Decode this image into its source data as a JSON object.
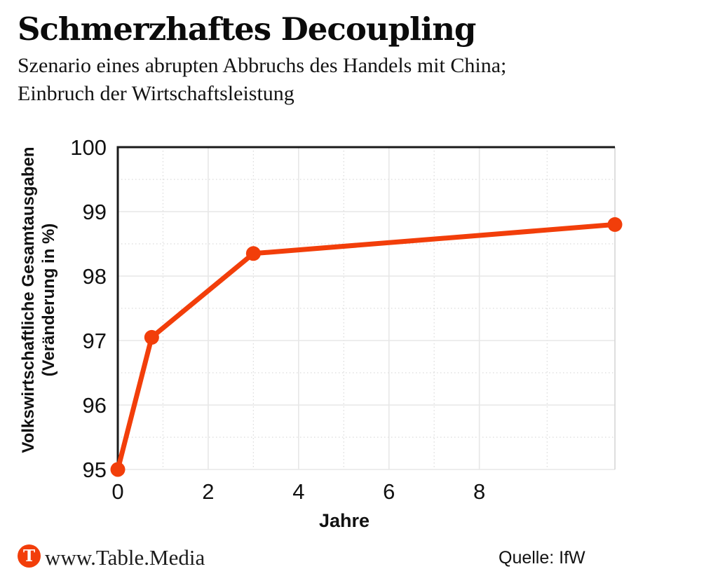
{
  "header": {
    "title": "Schmerzhaftes Decoupling",
    "subtitle_line1": "Szenario eines abrupten Abbruchs des Handels mit China;",
    "subtitle_line2": "Einbruch der Wirtschaftsleistung"
  },
  "chart_data": {
    "type": "line",
    "title": "Schmerzhaftes Decoupling",
    "subtitle": "Szenario eines abrupten Abbruchs des Handels mit China; Einbruch der Wirtschaftsleistung",
    "xlabel": "Jahre",
    "ylabel_line1": "Volkswirtschaftliche Gesamtausgaben",
    "ylabel_line2": "(Veränderung in %)",
    "xlim": [
      0,
      11
    ],
    "ylim": [
      95,
      100
    ],
    "xticks": [
      0,
      2,
      4,
      6,
      8
    ],
    "yticks": [
      100,
      99,
      98,
      97,
      96,
      95
    ],
    "minor_xticks": [
      1,
      3,
      5,
      7,
      9.5
    ],
    "minor_yticks": [
      99.5,
      98.5,
      97.5,
      96.5,
      95.5
    ],
    "grid": true,
    "legend_position": "none",
    "series": [
      {
        "name": "Volkswirtschaftliche Gesamtausgaben (Veränderung in %)",
        "points": [
          [
            0,
            95.0
          ],
          [
            0.75,
            97.05
          ],
          [
            3,
            98.35
          ],
          [
            11,
            98.8
          ]
        ]
      }
    ],
    "colors": {
      "line": "#F23E0A",
      "axis": "#1a1a1a",
      "grid_major": "#e7e7e7",
      "grid_minor": "#dadada",
      "plot_border": "#d6d6d6",
      "text": "#111111"
    }
  },
  "footer": {
    "logo_letter": "T",
    "logo_color": "#F23E0A",
    "site": "www.Table.Media",
    "source": "Quelle: IfW"
  }
}
